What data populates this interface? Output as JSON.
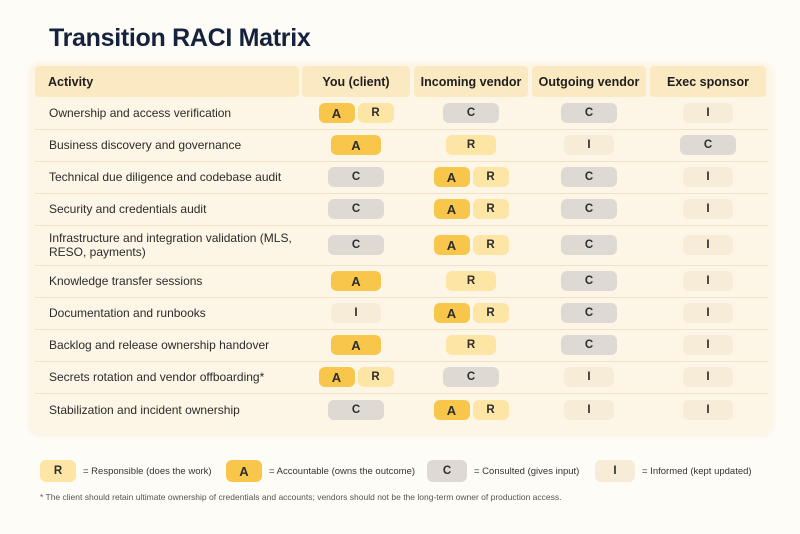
{
  "title": "Transition RACI Matrix",
  "columns": [
    "Activity",
    "You (client)",
    "Incoming vendor",
    "Outgoing vendor",
    "Exec sponsor"
  ],
  "rows": [
    {
      "activity": "Ownership and access verification",
      "cells": [
        [
          "A",
          "R"
        ],
        [
          "C"
        ],
        [
          "C"
        ],
        [
          "I"
        ]
      ]
    },
    {
      "activity": "Business discovery and governance",
      "cells": [
        [
          "A"
        ],
        [
          "R"
        ],
        [
          "I"
        ],
        [
          "C"
        ]
      ]
    },
    {
      "activity": "Technical due diligence and codebase audit",
      "cells": [
        [
          "C"
        ],
        [
          "A",
          "R"
        ],
        [
          "C"
        ],
        [
          "I"
        ]
      ]
    },
    {
      "activity": "Security and credentials audit",
      "cells": [
        [
          "C"
        ],
        [
          "A",
          "R"
        ],
        [
          "C"
        ],
        [
          "I"
        ]
      ]
    },
    {
      "activity": "Infrastructure and integration validation (MLS, RESO, payments)",
      "cells": [
        [
          "C"
        ],
        [
          "A",
          "R"
        ],
        [
          "C"
        ],
        [
          "I"
        ]
      ]
    },
    {
      "activity": "Knowledge transfer sessions",
      "cells": [
        [
          "A"
        ],
        [
          "R"
        ],
        [
          "C"
        ],
        [
          "I"
        ]
      ]
    },
    {
      "activity": "Documentation and runbooks",
      "cells": [
        [
          "I"
        ],
        [
          "A",
          "R"
        ],
        [
          "C"
        ],
        [
          "I"
        ]
      ]
    },
    {
      "activity": "Backlog and release ownership handover",
      "cells": [
        [
          "A"
        ],
        [
          "R"
        ],
        [
          "C"
        ],
        [
          "I"
        ]
      ]
    },
    {
      "activity": "Secrets rotation and vendor offboarding*",
      "cells": [
        [
          "A",
          "R"
        ],
        [
          "C"
        ],
        [
          "I"
        ],
        [
          "I"
        ]
      ]
    },
    {
      "activity": "Stabilization and incident ownership",
      "cells": [
        [
          "C"
        ],
        [
          "A",
          "R"
        ],
        [
          "I"
        ],
        [
          "I"
        ]
      ]
    }
  ],
  "legend": [
    {
      "code": "R",
      "text": "= Responsible (does the work)"
    },
    {
      "code": "A",
      "text": "= Accountable (owns the outcome)"
    },
    {
      "code": "C",
      "text": "= Consulted (gives input)"
    },
    {
      "code": "I",
      "text": "= Informed (kept updated)"
    }
  ],
  "footnote": "* The client should retain ultimate ownership of credentials and accounts; vendors should not be the long-term owner of production access.",
  "colors": {
    "A": "#f7c64a",
    "R": "#fde5a6",
    "C": "#dedad3",
    "I": "#f6ecd8",
    "header": "#fbe9c2",
    "title": "#15223d"
  }
}
